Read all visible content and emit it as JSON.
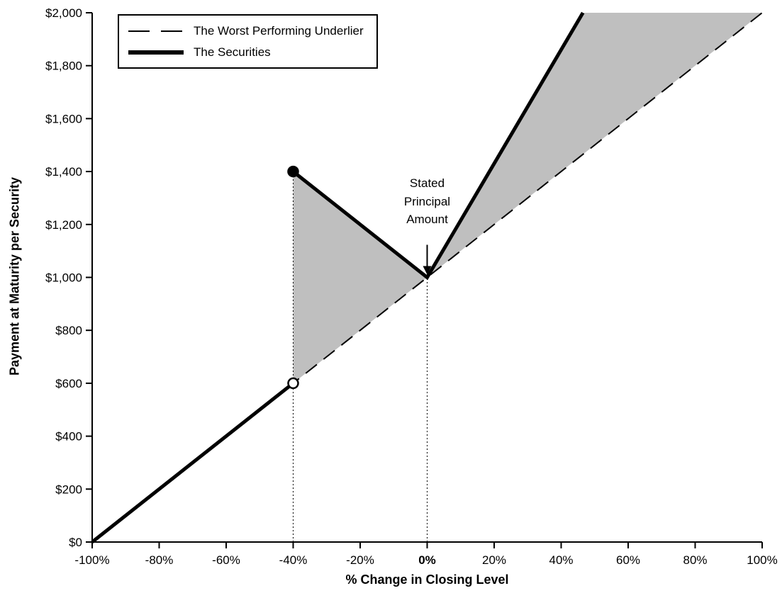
{
  "chart_data": {
    "type": "line",
    "title": "",
    "xlabel": "% Change in Closing Level",
    "ylabel": "Payment at Maturity per Security",
    "xlim": [
      -100,
      100
    ],
    "ylim": [
      0,
      2000
    ],
    "grid": false,
    "x_ticks": [
      -100,
      -80,
      -60,
      -40,
      -20,
      0,
      20,
      40,
      60,
      80,
      100
    ],
    "x_tick_labels": [
      "-100%",
      "-80%",
      "-60%",
      "-40%",
      "-20%",
      "0%",
      "20%",
      "40%",
      "60%",
      "80%",
      "100%"
    ],
    "emphasized_x_tick": "0%",
    "y_ticks": [
      0,
      200,
      400,
      600,
      800,
      1000,
      1200,
      1400,
      1600,
      1800,
      2000
    ],
    "y_tick_labels": [
      "$0",
      "$200",
      "$400",
      "$600",
      "$800",
      "$1,000",
      "$1,200",
      "$1,400",
      "$1,600",
      "$1,800",
      "$2,000"
    ],
    "legend": {
      "position": "top-left",
      "entries": [
        {
          "label": "The Worst Performing Underlier",
          "style": "dashed"
        },
        {
          "label": "The Securities",
          "style": "solid-thick"
        }
      ]
    },
    "series": [
      {
        "name": "The Worst Performing Underlier",
        "style": "dashed",
        "color": "#000000",
        "width": 2,
        "points": [
          [
            -100,
            0
          ],
          [
            100,
            2000
          ]
        ]
      },
      {
        "name": "The Securities",
        "style": "solid",
        "color": "#000000",
        "width": 5,
        "segments": [
          {
            "points": [
              [
                -100,
                0
              ],
              [
                -40,
                600
              ]
            ]
          },
          {
            "points": [
              [
                -40,
                1400
              ],
              [
                0,
                1000
              ],
              [
                46.5,
                2000
              ]
            ]
          }
        ]
      }
    ],
    "markers": [
      {
        "x": -40,
        "y": 600,
        "type": "open-circle"
      },
      {
        "x": -40,
        "y": 1400,
        "type": "filled-circle"
      }
    ],
    "reference_lines": [
      {
        "type": "vertical-dotted",
        "x": -40,
        "y0": 0,
        "y1": 1400
      },
      {
        "type": "vertical-dotted",
        "x": 0,
        "y0": 0,
        "y1": 1000
      }
    ],
    "shaded_regions": [
      {
        "fill": "#bfbfbf",
        "polygon": [
          [
            -40,
            1400
          ],
          [
            0,
            1000
          ],
          [
            -40,
            600
          ]
        ]
      },
      {
        "fill": "#bfbfbf",
        "polygon": [
          [
            0,
            1000
          ],
          [
            46.5,
            2000
          ],
          [
            100,
            2000
          ]
        ]
      }
    ],
    "annotation": {
      "lines": [
        "Stated",
        "Principal",
        "Amount"
      ],
      "arrow_to": [
        0,
        1000
      ]
    },
    "colors": {
      "line": "#000000",
      "shade": "#bfbfbf",
      "background": "#ffffff"
    }
  }
}
